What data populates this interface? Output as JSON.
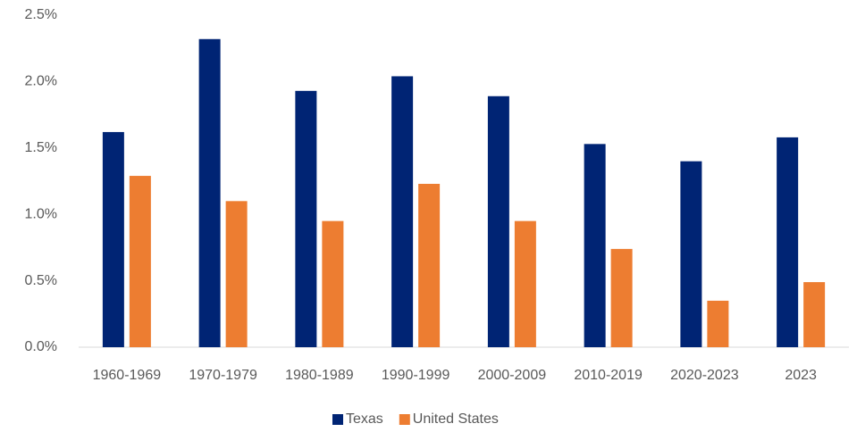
{
  "chart_data": {
    "type": "bar",
    "categories": [
      "1960-1969",
      "1970-1979",
      "1980-1989",
      "1990-1999",
      "2000-2009",
      "2010-2019",
      "2020-2023",
      "2023"
    ],
    "series": [
      {
        "name": "Texas",
        "color": "#002474",
        "values": [
          1.62,
          2.32,
          1.93,
          2.04,
          1.89,
          1.53,
          1.4,
          1.58
        ]
      },
      {
        "name": "United States",
        "color": "#ED7D31",
        "values": [
          1.29,
          1.1,
          0.95,
          1.23,
          0.95,
          0.74,
          0.35,
          0.49
        ]
      }
    ],
    "ylim": [
      0,
      2.5
    ],
    "yticks": [
      {
        "value": 0,
        "label": "0.0%"
      },
      {
        "value": 0.5,
        "label": "0.5%"
      },
      {
        "value": 1.0,
        "label": "1.0%"
      },
      {
        "value": 1.5,
        "label": "1.5%"
      },
      {
        "value": 2.0,
        "label": "2.0%"
      },
      {
        "value": 2.5,
        "label": "2.5%"
      }
    ],
    "grid": false,
    "legend": "bottom"
  }
}
